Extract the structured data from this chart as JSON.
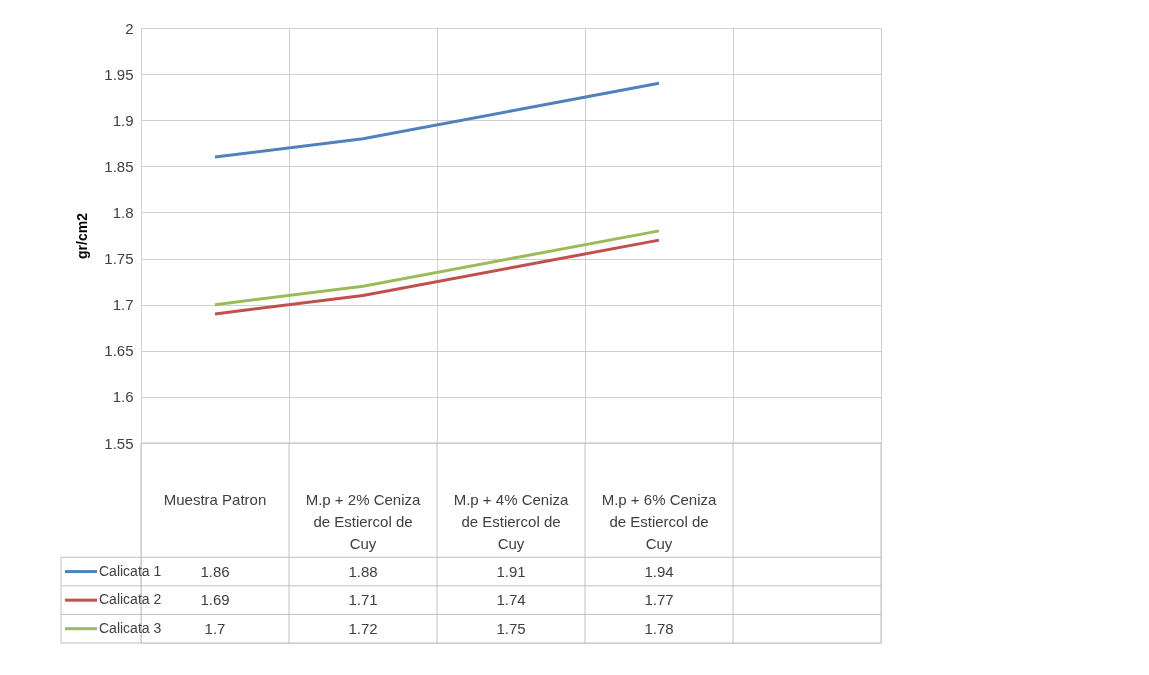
{
  "chart_data": {
    "type": "line",
    "ylabel": "gr/cm2",
    "categories": [
      "Muestra Patron",
      "M.p + 2% Ceniza de Estiercol de Cuy",
      "M.p + 4% Ceniza de Estiercol de Cuy",
      "M.p + 6% Ceniza de Estiercol de Cuy",
      null
    ],
    "series": [
      {
        "name": "Calicata 1",
        "color": "#4f81bd",
        "values": [
          1.86,
          1.88,
          1.91,
          1.94,
          null
        ]
      },
      {
        "name": "Calicata 2",
        "color": "#c0504d",
        "values": [
          1.69,
          1.71,
          1.74,
          1.77,
          null
        ]
      },
      {
        "name": "Calicata 3",
        "color": "#9bbb59",
        "values": [
          1.7,
          1.72,
          1.75,
          1.78,
          null
        ]
      }
    ],
    "ylim": [
      1.55,
      2
    ],
    "yticks": [
      1.55,
      1.6,
      1.65,
      1.7,
      1.75,
      1.8,
      1.85,
      1.9,
      1.95,
      2
    ],
    "grid": true,
    "legend": "bottom",
    "data_labels": true,
    "marker": "none",
    "line_style": "solid"
  }
}
